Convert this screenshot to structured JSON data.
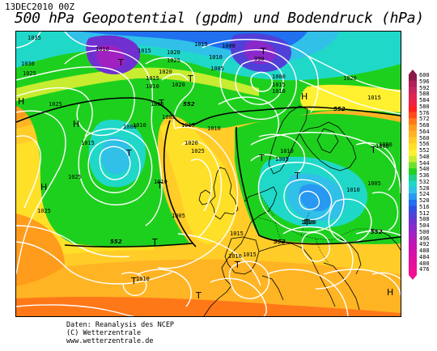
{
  "header": {
    "date_time": "13DEC2010 00Z",
    "title": "500 hPa Geopotential (gpdm) und Bodendruck (hPa)"
  },
  "credit": {
    "line1": "Daten: Reanalysis des NCEP",
    "line2": "(C) Wetterzentrale",
    "line3": "www.wetterzentrale.de"
  },
  "scale": {
    "labels": [
      "600",
      "596",
      "592",
      "588",
      "584",
      "580",
      "576",
      "572",
      "568",
      "564",
      "560",
      "556",
      "552",
      "548",
      "544",
      "540",
      "536",
      "532",
      "528",
      "524",
      "520",
      "516",
      "512",
      "508",
      "504",
      "500",
      "496",
      "492",
      "488",
      "484",
      "480",
      "476"
    ],
    "colors": [
      "#8b1a4a",
      "#b0205a",
      "#c8245e",
      "#e02450",
      "#f0204a",
      "#ff2020",
      "#ff4a1c",
      "#ff7818",
      "#ff9c1c",
      "#ffb424",
      "#ffcc28",
      "#ffe028",
      "#fff030",
      "#c8ec30",
      "#70e030",
      "#20d020",
      "#20d08c",
      "#20d8c8",
      "#30c0e8",
      "#2898f0",
      "#2070f0",
      "#3050e0",
      "#5040d8",
      "#7030d0",
      "#8a28c8",
      "#a020c0",
      "#b818b8",
      "#c810b0",
      "#d810a8",
      "#e010a0",
      "#e81098",
      "#f01090"
    ]
  },
  "map": {
    "pressure_labels": [
      "1035",
      "1030",
      "1025",
      "1010",
      "1015",
      "1020",
      "1025",
      "1015",
      "1010",
      "1000",
      "1005",
      "1020",
      "1015",
      "1010",
      "1005",
      "990",
      "1000",
      "1025",
      "1020",
      "1015",
      "1010",
      "1010",
      "1005",
      "1000",
      "1010",
      "1025",
      "1020",
      "1015",
      "1025",
      "1015",
      "1010",
      "1005",
      "1010",
      "1005",
      "1000",
      "1010",
      "1015",
      "1020",
      "1010",
      "1015",
      "1005",
      "1000",
      "1010",
      "1010",
      "1000",
      "1015",
      "1025"
    ],
    "gpdm_labels": [
      "552",
      "552",
      "552",
      "552",
      "552"
    ],
    "lows": [
      "T",
      "T",
      "T",
      "T",
      "T",
      "T",
      "T",
      "T",
      "T",
      "T",
      "T",
      "T",
      "T",
      "T"
    ],
    "highs": [
      "H",
      "H",
      "H",
      "H",
      "H"
    ]
  },
  "colors": {
    "background": "#ffffff",
    "contour": "#ffffff",
    "coast": "#000000"
  }
}
